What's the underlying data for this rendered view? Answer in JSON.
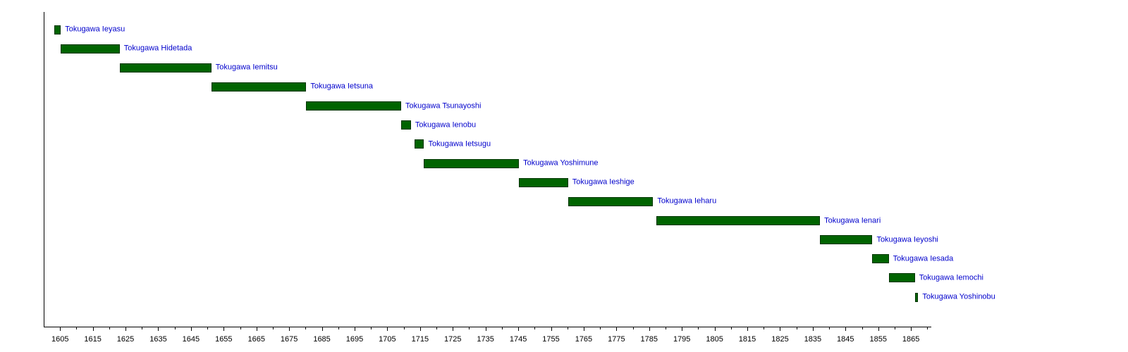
{
  "colors": {
    "bar_fill": "#006400",
    "bar_border": "#003300",
    "label_text": "#0000cc",
    "axis": "#000000",
    "background": "#ffffff"
  },
  "chart_data": {
    "type": "bar",
    "variant": "horizontal-timeline-gantt",
    "title": "",
    "xlabel": "",
    "ylabel": "",
    "xlim": [
      1600,
      1871
    ],
    "grid": false,
    "legend": false,
    "x_major_ticks": [
      "1605",
      "1615",
      "1625",
      "1635",
      "1645",
      "1655",
      "1665",
      "1675",
      "1685",
      "1695",
      "1705",
      "1715",
      "1725",
      "1735",
      "1745",
      "1755",
      "1765",
      "1775",
      "1785",
      "1795",
      "1805",
      "1815",
      "1825",
      "1835",
      "1845",
      "1855",
      "1865"
    ],
    "x_minor_ticks": [
      1610,
      1620,
      1630,
      1640,
      1650,
      1660,
      1670,
      1680,
      1690,
      1700,
      1710,
      1720,
      1730,
      1740,
      1750,
      1760,
      1770,
      1780,
      1790,
      1800,
      1810,
      1820,
      1830,
      1840,
      1850,
      1860,
      1870
    ],
    "bars": [
      {
        "label": "Tokugawa Ieyasu",
        "start": 1603,
        "end": 1605
      },
      {
        "label": "Tokugawa Hidetada",
        "start": 1605,
        "end": 1623
      },
      {
        "label": "Tokugawa Iemitsu",
        "start": 1623,
        "end": 1651
      },
      {
        "label": "Tokugawa Ietsuna",
        "start": 1651,
        "end": 1680
      },
      {
        "label": "Tokugawa Tsunayoshi",
        "start": 1680,
        "end": 1709
      },
      {
        "label": "Tokugawa Ienobu",
        "start": 1709,
        "end": 1712
      },
      {
        "label": "Tokugawa Ietsugu",
        "start": 1713,
        "end": 1716
      },
      {
        "label": "Tokugawa Yoshimune",
        "start": 1716,
        "end": 1745
      },
      {
        "label": "Tokugawa Ieshige",
        "start": 1745,
        "end": 1760
      },
      {
        "label": "Tokugawa Ieharu",
        "start": 1760,
        "end": 1786
      },
      {
        "label": "Tokugawa Ienari",
        "start": 1787,
        "end": 1837
      },
      {
        "label": "Tokugawa Ieyoshi",
        "start": 1837,
        "end": 1853
      },
      {
        "label": "Tokugawa Iesada",
        "start": 1853,
        "end": 1858
      },
      {
        "label": "Tokugawa Iemochi",
        "start": 1858,
        "end": 1866
      },
      {
        "label": "Tokugawa Yoshinobu",
        "start": 1866,
        "end": 1867
      }
    ]
  }
}
